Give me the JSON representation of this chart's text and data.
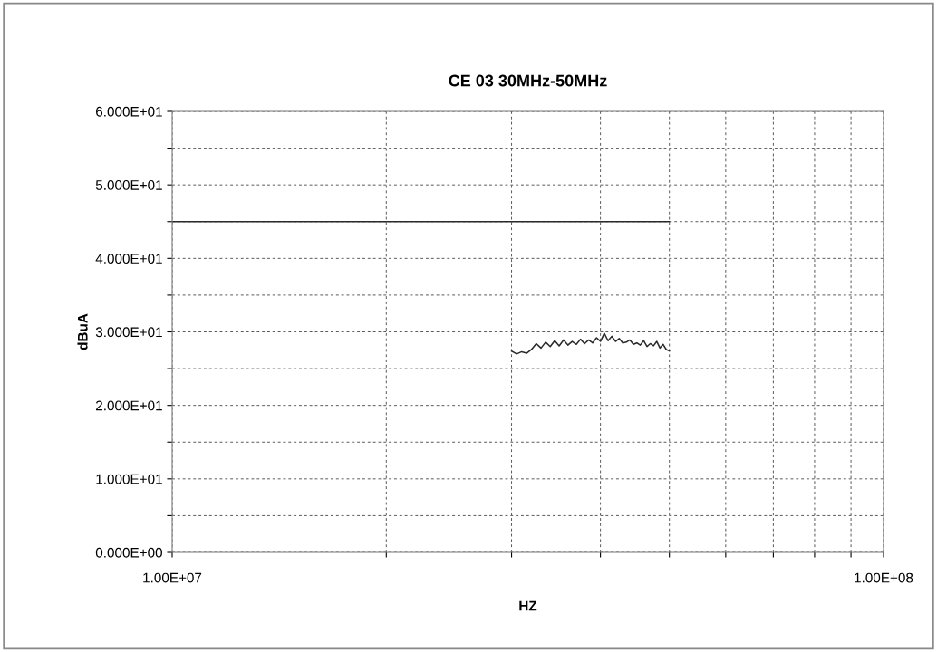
{
  "chart_data": {
    "type": "line",
    "title": "CE 03 30MHz-50MHz",
    "xlabel": "HZ",
    "ylabel": "dBuA",
    "log": "x",
    "xlim": [
      10000000,
      100000000
    ],
    "xticks": [
      {
        "value": 10000000,
        "label": "1.00E+07"
      },
      {
        "value": 20000000,
        "label": null
      },
      {
        "value": 30000000,
        "label": null
      },
      {
        "value": 40000000,
        "label": null
      },
      {
        "value": 50000000,
        "label": null
      },
      {
        "value": 60000000,
        "label": null
      },
      {
        "value": 70000000,
        "label": null
      },
      {
        "value": 80000000,
        "label": null
      },
      {
        "value": 90000000,
        "label": null
      },
      {
        "value": 100000000,
        "label": "1.00E+08"
      }
    ],
    "ylim": [
      0,
      60
    ],
    "yticks": [
      {
        "value": 0,
        "label": "0.000E+00"
      },
      {
        "value": 5,
        "label": null
      },
      {
        "value": 10,
        "label": "1.000E+01"
      },
      {
        "value": 15,
        "label": null
      },
      {
        "value": 20,
        "label": "2.000E+01"
      },
      {
        "value": 25,
        "label": null
      },
      {
        "value": 30,
        "label": "3.000E+01"
      },
      {
        "value": 35,
        "label": null
      },
      {
        "value": 40,
        "label": "4.000E+01"
      },
      {
        "value": 45,
        "label": null
      },
      {
        "value": 50,
        "label": "5.000E+01"
      },
      {
        "value": 55,
        "label": null
      },
      {
        "value": 60,
        "label": "6.000E+01"
      }
    ],
    "grid": true,
    "marker": "none",
    "series": [
      {
        "color": "#2a2a2a",
        "x": [
          10000000,
          50000000
        ],
        "values": [
          45,
          45
        ]
      },
      {
        "color": "#2a2a2a",
        "x": [
          30000000,
          30500000,
          31000000,
          31500000,
          32000000,
          32500000,
          33000000,
          33500000,
          34000000,
          34500000,
          35000000,
          35500000,
          36000000,
          36500000,
          37000000,
          37500000,
          38000000,
          38500000,
          39000000,
          39500000,
          40000000,
          40500000,
          41000000,
          41500000,
          42000000,
          42500000,
          43000000,
          43500000,
          44000000,
          44500000,
          45000000,
          45500000,
          46000000,
          46500000,
          47000000,
          47500000,
          48000000,
          48500000,
          49000000,
          49500000,
          50000000
        ],
        "values": [
          27.4,
          27.0,
          27.3,
          27.1,
          27.6,
          28.4,
          27.8,
          28.6,
          28.0,
          28.8,
          28.1,
          28.9,
          28.2,
          28.7,
          28.3,
          29.0,
          28.4,
          28.9,
          28.5,
          29.2,
          28.7,
          29.8,
          28.8,
          29.4,
          28.7,
          29.1,
          28.5,
          28.6,
          28.9,
          28.3,
          28.5,
          28.2,
          28.8,
          28.0,
          28.4,
          28.1,
          28.7,
          27.8,
          28.3,
          27.6,
          27.4
        ]
      }
    ]
  }
}
